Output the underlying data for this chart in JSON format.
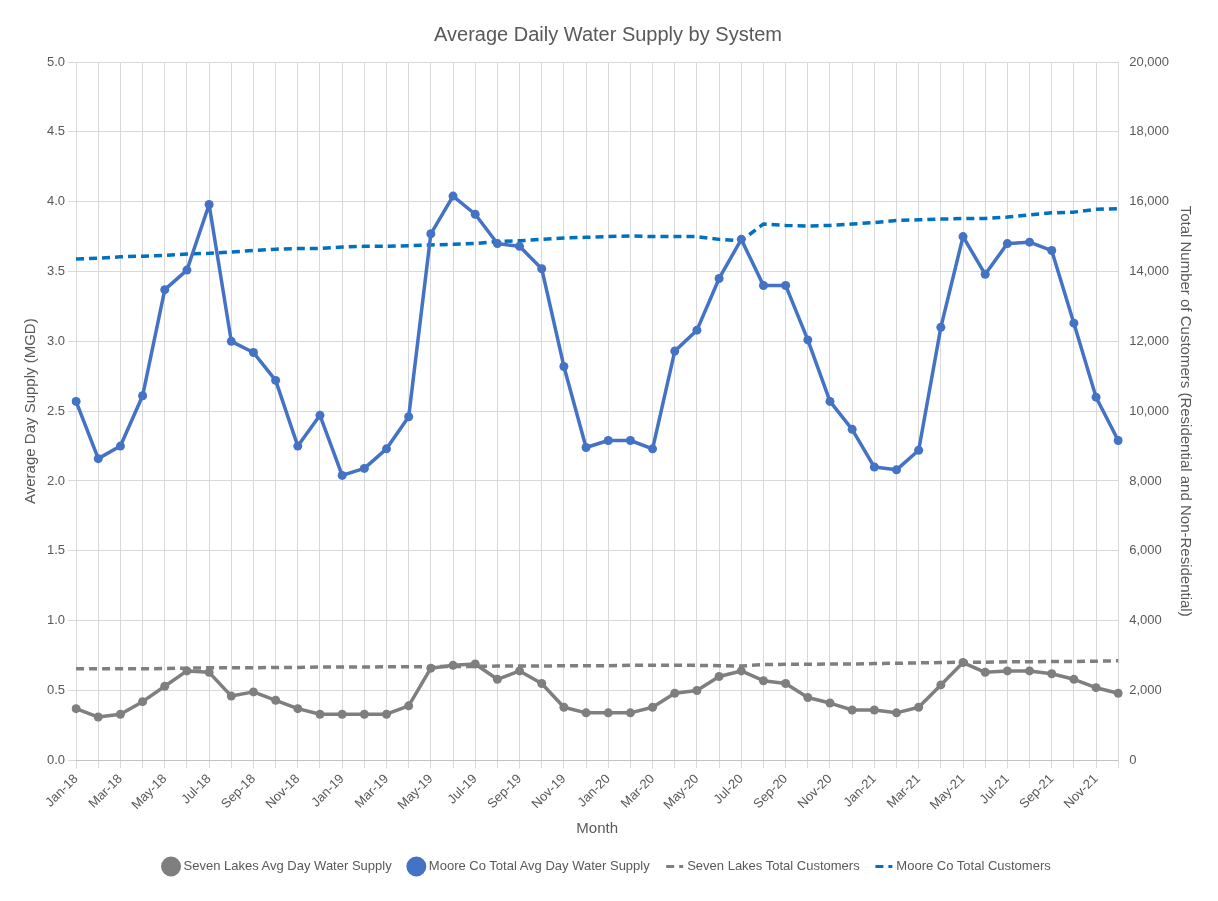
{
  "chart_data": {
    "type": "line",
    "title": "Average Daily Water Supply by System",
    "xlabel": "Month",
    "ylabel": "Average Day Supply (MGD)",
    "y2label": "Total Number of Customers (Residential and Non-Residential)",
    "categories": [
      "Jan-18",
      null,
      "Mar-18",
      null,
      "May-18",
      null,
      "Jul-18",
      null,
      "Sep-18",
      null,
      "Nov-18",
      null,
      "Jan-19",
      null,
      "Mar-19",
      null,
      "May-19",
      null,
      "Jul-19",
      null,
      "Sep-19",
      null,
      "Nov-19",
      null,
      "Jan-20",
      null,
      "Mar-20",
      null,
      "May-20",
      null,
      "Jul-20",
      null,
      "Sep-20",
      null,
      "Nov-20",
      null,
      "Jan-21",
      null,
      "Mar-21",
      null,
      "May-21",
      null,
      "Jul-21",
      null,
      "Sep-21",
      null,
      "Nov-21",
      null
    ],
    "series": [
      {
        "name": "Seven Lakes Avg Day Water Supply",
        "color": "#7f7f7f",
        "marker": "circle",
        "line_style": "solid",
        "values": [
          0.37,
          0.31,
          0.33,
          0.42,
          0.53,
          0.64,
          0.63,
          0.46,
          0.49,
          0.43,
          0.37,
          0.33,
          0.33,
          0.33,
          0.33,
          0.39,
          0.66,
          0.68,
          0.69,
          0.58,
          0.64,
          0.55,
          0.38,
          0.34,
          0.34,
          0.34,
          0.38,
          0.48,
          0.5,
          0.6,
          0.64,
          0.57,
          0.55,
          0.45,
          0.41,
          0.36,
          0.36,
          0.34,
          0.38,
          0.54,
          0.7,
          0.63,
          0.64,
          0.64,
          0.62,
          0.58,
          0.52,
          0.48
        ]
      },
      {
        "name": "Moore Co Total Avg Day Water Supply",
        "color": "#4472c4",
        "marker": "circle",
        "line_style": "solid",
        "values": [
          2.57,
          2.16,
          2.25,
          2.61,
          3.37,
          3.51,
          3.98,
          3.0,
          2.92,
          2.72,
          2.25,
          2.47,
          2.04,
          2.09,
          2.23,
          2.46,
          3.77,
          4.04,
          3.91,
          3.7,
          3.68,
          3.52,
          2.82,
          2.24,
          2.29,
          2.29,
          2.23,
          2.93,
          3.08,
          3.45,
          3.73,
          3.4,
          3.4,
          3.01,
          2.57,
          2.37,
          2.1,
          2.08,
          2.22,
          3.1,
          3.75,
          3.48,
          3.7,
          3.71,
          3.65,
          3.13,
          2.6,
          2.29
        ]
      },
      {
        "name": "Seven Lakes Total Customers",
        "color": "#7f7f7f",
        "axis": "y2",
        "marker": "none",
        "line_style": "dashed",
        "values": [
          2620,
          2620,
          2620,
          2620,
          2630,
          2640,
          2650,
          2650,
          2650,
          2660,
          2660,
          2670,
          2670,
          2670,
          2680,
          2680,
          2680,
          2690,
          2690,
          2700,
          2700,
          2700,
          2710,
          2710,
          2710,
          2720,
          2720,
          2720,
          2720,
          2710,
          2700,
          2740,
          2750,
          2750,
          2760,
          2760,
          2770,
          2780,
          2790,
          2800,
          2810,
          2810,
          2820,
          2820,
          2830,
          2830,
          2840,
          2850
        ]
      },
      {
        "name": "Moore Co Total Customers",
        "color": "#0070c0",
        "axis": "y2",
        "marker": "none",
        "line_style": "dashed",
        "values": [
          14360,
          14380,
          14420,
          14440,
          14460,
          14500,
          14520,
          14560,
          14600,
          14640,
          14660,
          14660,
          14700,
          14720,
          14720,
          14740,
          14760,
          14780,
          14800,
          14860,
          14880,
          14920,
          14960,
          14980,
          15000,
          15020,
          15000,
          15000,
          15000,
          14920,
          14880,
          15360,
          15320,
          15300,
          15320,
          15360,
          15400,
          15460,
          15480,
          15500,
          15520,
          15520,
          15560,
          15620,
          15680,
          15700,
          15780,
          15800
        ]
      }
    ],
    "ylim": [
      0,
      5
    ],
    "yticks": [
      {
        "value": 0,
        "label": "0.0"
      },
      {
        "value": 0.5,
        "label": "0.5"
      },
      {
        "value": 1,
        "label": "1.0"
      },
      {
        "value": 1.5,
        "label": "1.5"
      },
      {
        "value": 2,
        "label": "2.0"
      },
      {
        "value": 2.5,
        "label": "2.5"
      },
      {
        "value": 3,
        "label": "3.0"
      },
      {
        "value": 3.5,
        "label": "3.5"
      },
      {
        "value": 4,
        "label": "4.0"
      },
      {
        "value": 4.5,
        "label": "4.5"
      },
      {
        "value": 5,
        "label": "5.0"
      }
    ],
    "y2lim": [
      0,
      20000
    ],
    "y2ticks": [
      0,
      {
        "value": 2000,
        "label": "2,000"
      },
      {
        "value": 4000,
        "label": "4,000"
      },
      {
        "value": 6000,
        "label": "6,000"
      },
      {
        "value": 8000,
        "label": "8,000"
      },
      {
        "value": 10000,
        "label": "10,000"
      },
      {
        "value": 12000,
        "label": "12,000"
      },
      {
        "value": 14000,
        "label": "14,000"
      },
      {
        "value": 16000,
        "label": "16,000"
      },
      {
        "value": 18000,
        "label": "18,000"
      },
      {
        "value": 20000,
        "label": "20,000"
      }
    ],
    "grid": true,
    "legend": "bottom"
  }
}
